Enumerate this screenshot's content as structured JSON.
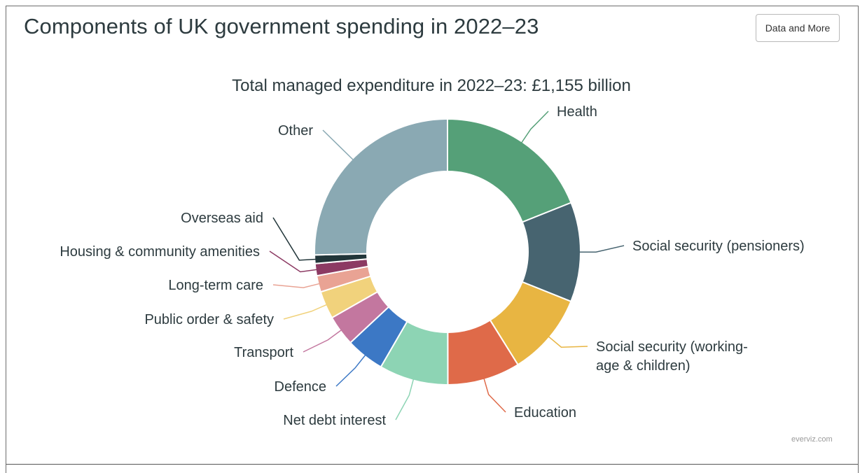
{
  "header": {
    "title": "Components of UK government spending in 2022–23",
    "data_button_label": "Data and More"
  },
  "credit": "everviz.com",
  "chart_data": {
    "type": "pie",
    "variant": "donut",
    "title": "Total managed expenditure in 2022–23: £1,155 billion",
    "unit": "£ billion",
    "total": 1155,
    "start": "top, clockwise",
    "slices": [
      {
        "name": "Health",
        "label_lines": [
          "Health"
        ],
        "value": 219,
        "color": "#55a078",
        "label_side": "right"
      },
      {
        "name": "Social security (pensioners)",
        "label_lines": [
          "Social security (pensioners)"
        ],
        "value": 140,
        "color": "#476470",
        "label_side": "right"
      },
      {
        "name": "Social security (working-age & children)",
        "label_lines": [
          "Social security (working-",
          "age & children)"
        ],
        "value": 116,
        "color": "#e8b542",
        "label_side": "right"
      },
      {
        "name": "Education",
        "label_lines": [
          "Education"
        ],
        "value": 102,
        "color": "#df6a49",
        "label_side": "right"
      },
      {
        "name": "Net debt interest",
        "label_lines": [
          "Net debt interest"
        ],
        "value": 97,
        "color": "#8dd4b4",
        "label_side": "left"
      },
      {
        "name": "Defence",
        "label_lines": [
          "Defence"
        ],
        "value": 54,
        "color": "#3c78c5",
        "label_side": "left"
      },
      {
        "name": "Transport",
        "label_lines": [
          "Transport"
        ],
        "value": 43,
        "color": "#c3779f",
        "label_side": "left"
      },
      {
        "name": "Public order & safety",
        "label_lines": [
          "Public order & safety"
        ],
        "value": 39,
        "color": "#f1d27c",
        "label_side": "left"
      },
      {
        "name": "Long-term care",
        "label_lines": [
          "Long-term care"
        ],
        "value": 23,
        "color": "#e9a394",
        "label_side": "left"
      },
      {
        "name": "Housing & community amenities",
        "label_lines": [
          "Housing & community amenities"
        ],
        "value": 17,
        "color": "#8c3a63",
        "label_side": "left"
      },
      {
        "name": "Overseas aid",
        "label_lines": [
          "Overseas aid"
        ],
        "value": 12,
        "color": "#22363a",
        "label_side": "left"
      },
      {
        "name": "Other",
        "label_lines": [
          "Other"
        ],
        "value": 293,
        "color": "#8aa9b3",
        "label_side": "left"
      }
    ]
  }
}
